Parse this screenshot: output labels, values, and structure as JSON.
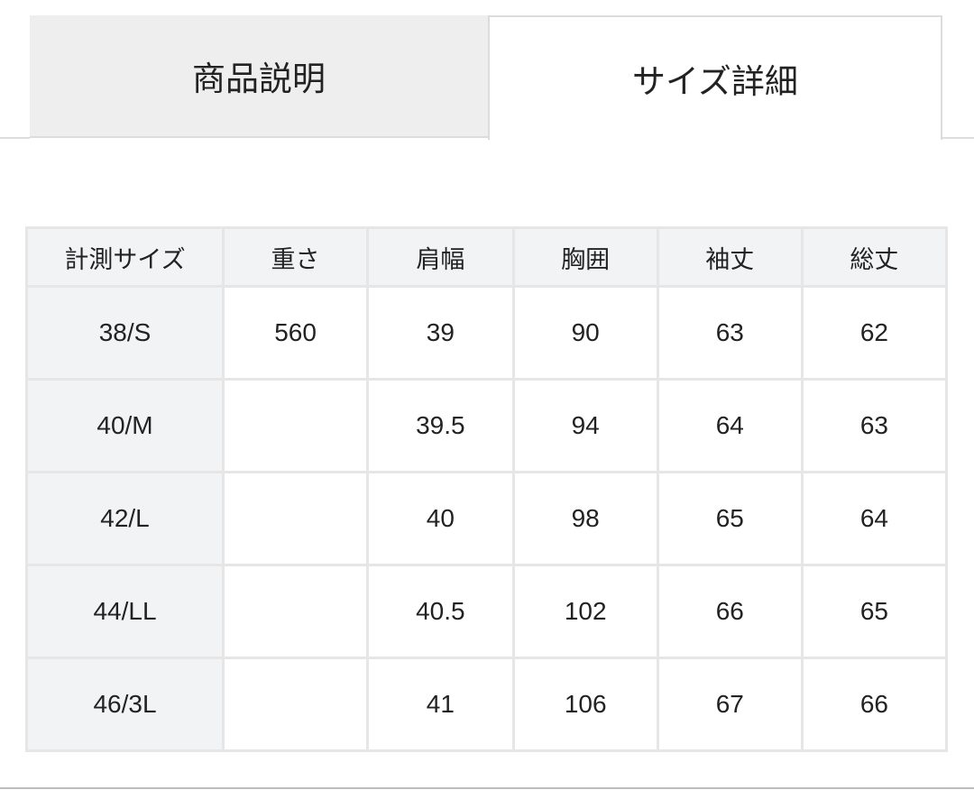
{
  "tabs": [
    {
      "label": "商品説明",
      "active": false
    },
    {
      "label": "サイズ詳細",
      "active": true
    }
  ],
  "size_table": {
    "headers": [
      "計測サイズ",
      "重さ",
      "肩幅",
      "胸囲",
      "袖丈",
      "総丈"
    ],
    "rows": [
      [
        "38/S",
        "560",
        "39",
        "90",
        "63",
        "62"
      ],
      [
        "40/M",
        "",
        "39.5",
        "94",
        "64",
        "63"
      ],
      [
        "42/L",
        "",
        "40",
        "98",
        "65",
        "64"
      ],
      [
        "44/LL",
        "",
        "40.5",
        "102",
        "66",
        "65"
      ],
      [
        "46/3L",
        "",
        "41",
        "106",
        "67",
        "66"
      ]
    ]
  },
  "colors": {
    "tab_inactive_bg": "#eeeeee",
    "header_bg": "#f2f3f5",
    "border": "#e6e6e6"
  }
}
